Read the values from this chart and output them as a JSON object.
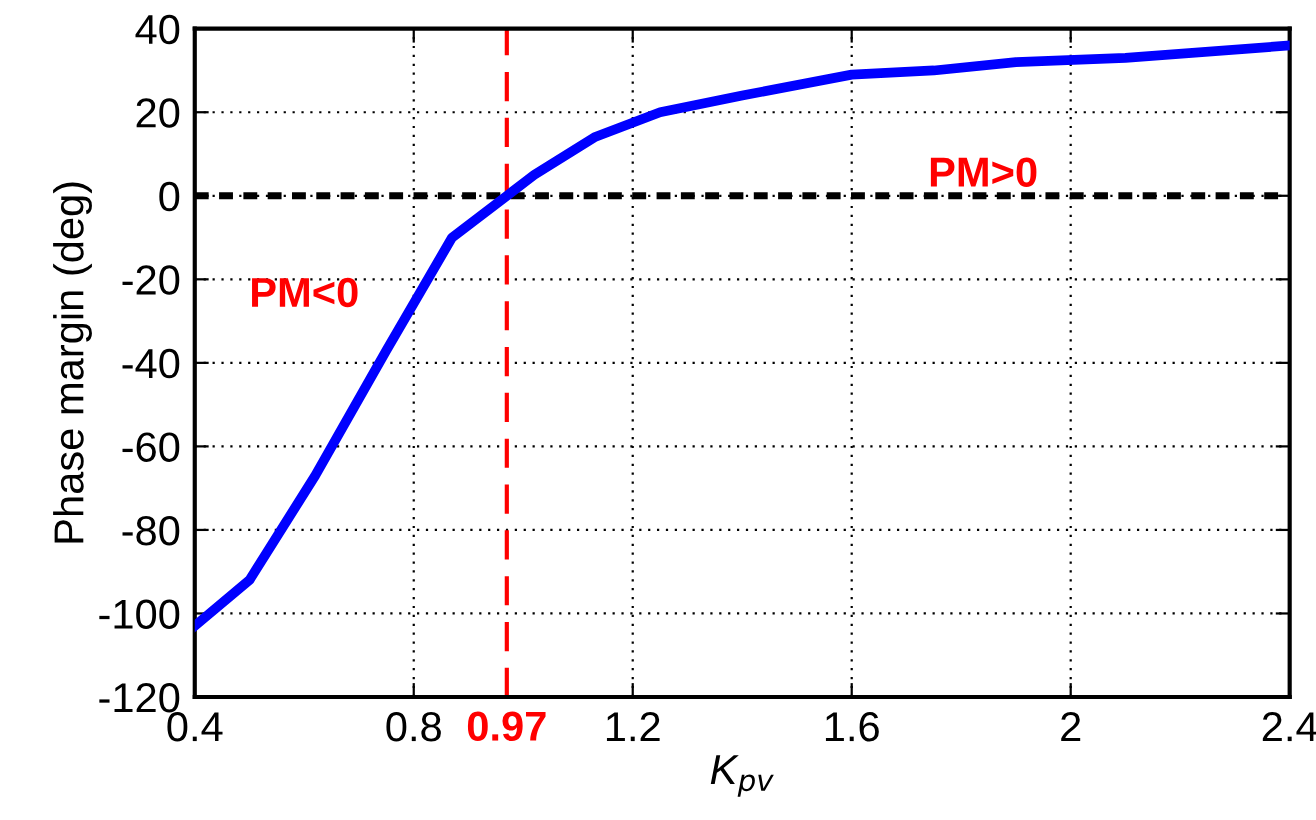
{
  "chart_data": {
    "type": "line",
    "xlabel": "K$_{pv}$",
    "ylabel": "Phase margin (deg)",
    "x": [
      0.4,
      0.5,
      0.62,
      0.75,
      0.87,
      0.97,
      1.02,
      1.13,
      1.25,
      1.4,
      1.6,
      1.75,
      1.9,
      2.1,
      2.4
    ],
    "series": [
      {
        "color": "#0000ff",
        "values": [
          -103,
          -92,
          -67,
          -37,
          -10,
          0,
          5,
          14,
          20,
          24,
          29,
          30,
          32,
          33,
          36
        ]
      }
    ],
    "xlim": [
      0.4,
      2.4
    ],
    "xticks": [
      0.4,
      0.8,
      1.2,
      1.6,
      2,
      2.4
    ],
    "ylim": [
      -120,
      40
    ],
    "yticks": [
      -120,
      -100,
      -80,
      -60,
      -40,
      -20,
      0,
      20,
      40
    ],
    "grid": true,
    "legend": false,
    "marker": "none",
    "line_style": "solid",
    "ref_lines": [
      {
        "axis": "y",
        "value": 0,
        "color": "#000000",
        "line_style": "dotted"
      },
      {
        "axis": "x",
        "value": 0.97,
        "label": "0.97",
        "color": "#ff0000",
        "line_style": "dashed"
      }
    ],
    "annotations": [
      "PM<0",
      "PM>0"
    ]
  }
}
